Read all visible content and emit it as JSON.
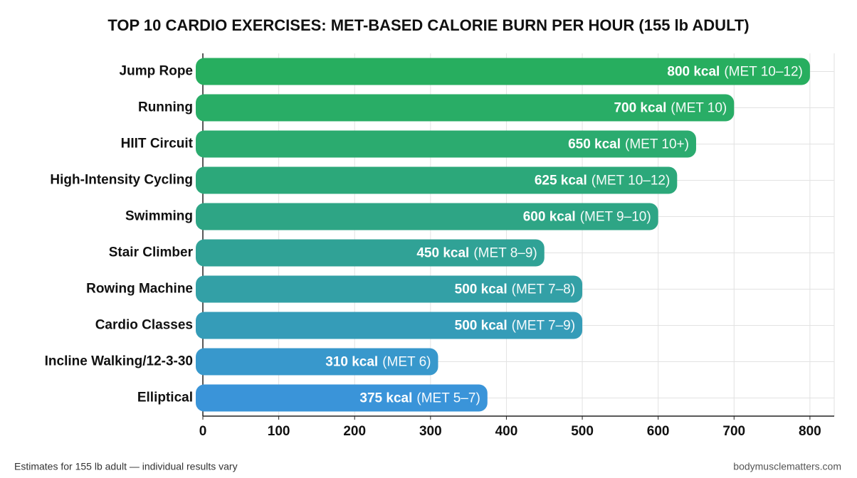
{
  "chart_data": {
    "type": "hbar",
    "title": "TOP 10 CARDIO EXERCISES: MET-BASED CALORIE BURN PER HOUR (155 lb ADULT)",
    "categories": [
      "Jump Rope",
      "Running",
      "HIIT Circuit",
      "High-Intensity Cycling",
      "Swimming",
      "Stair Climber",
      "Rowing Machine",
      "Cardio Classes",
      "Incline Walking/12-3-30",
      "Elliptical"
    ],
    "values": [
      800,
      700,
      650,
      625,
      600,
      450,
      500,
      500,
      310,
      375
    ],
    "value_labels": [
      "800 kcal",
      "700 kcal",
      "650 kcal",
      "625 kcal",
      "600 kcal",
      "450 kcal",
      "500 kcal",
      "500 kcal",
      "310 kcal",
      "375 kcal"
    ],
    "met_labels": [
      "(MET 10–12)",
      "(MET 10)",
      "(MET 10+)",
      "(MET 10–12)",
      "(MET 9–10)",
      "(MET 8–9)",
      "(MET 7–8)",
      "(MET 7–9)",
      "(MET 6)",
      "(MET 5–7)"
    ],
    "colors": [
      "#27ae5f",
      "#29ad66",
      "#2bab6f",
      "#2ca87a",
      "#2ea585",
      "#30a296",
      "#33a0a6",
      "#359cb8",
      "#3898cc",
      "#3a94d9"
    ],
    "xlim": [
      0,
      832
    ],
    "xticks": [
      0,
      100,
      200,
      300,
      400,
      500,
      600,
      700,
      800
    ],
    "grid": true,
    "footnote": "Estimates for 155 lb adult — individual results vary",
    "source": "bodymusclematters.com"
  }
}
